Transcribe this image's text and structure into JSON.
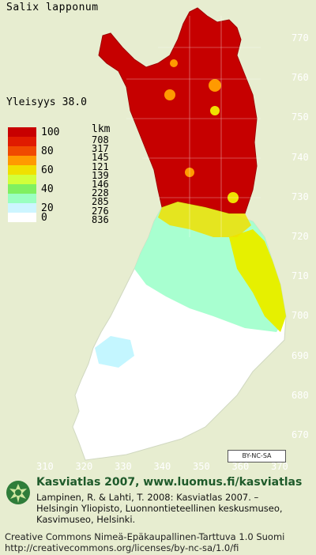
{
  "species": "Salix lapponum",
  "frequency": {
    "label": "Yleisyys",
    "value": "38.0"
  },
  "legend": {
    "count_header": "lkm",
    "classes": [
      {
        "label": "100",
        "color": "#c80000",
        "count": "708"
      },
      {
        "label": "",
        "color": "#e01b00",
        "count": "317"
      },
      {
        "label": "80",
        "color": "#f04a00",
        "count": "145"
      },
      {
        "label": "",
        "color": "#ff9a00",
        "count": "121"
      },
      {
        "label": "60",
        "color": "#f0e000",
        "count": "139"
      },
      {
        "label": "",
        "color": "#d2ff3a",
        "count": "146"
      },
      {
        "label": "40",
        "color": "#80f060",
        "count": "228"
      },
      {
        "label": "",
        "color": "#9affc0",
        "count": "285"
      },
      {
        "label": "20",
        "color": "#cdf5ff",
        "count": "276"
      },
      {
        "label": "0",
        "color": "#ffffff",
        "count": "836"
      }
    ]
  },
  "map": {
    "y_axis_ticks": [
      "770",
      "760",
      "750",
      "740",
      "730",
      "720",
      "710",
      "700",
      "690",
      "680",
      "670"
    ],
    "x_axis_ticks": [
      "310",
      "320",
      "330",
      "340",
      "350",
      "360",
      "370"
    ],
    "background_color": "#e7edd0"
  },
  "license_badge": "BY-NC-SA",
  "credits": {
    "title": "Kasviatlas 2007, www.luomus.fi/kasviatlas",
    "lines": [
      "Lampinen, R. & Lahti, T. 2008: Kasviatlas 2007. –",
      "Helsingin Yliopisto, Luonnontieteellinen keskusmuseo,",
      "Kasvimuseo, Helsinki."
    ]
  },
  "license": {
    "line1": "Creative Commons Nimeä-Epäkaupallinen-Tarttuva 1.0 Suomi",
    "line2": "http://creativecommons.org/licenses/by-nc-sa/1.0/fi"
  }
}
